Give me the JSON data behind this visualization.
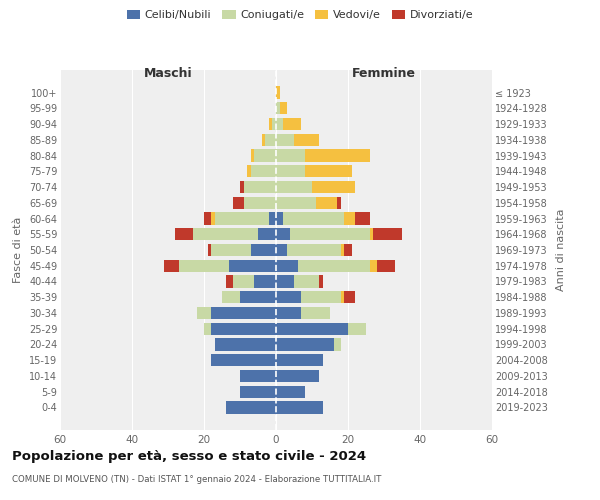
{
  "age_groups": [
    "100+",
    "95-99",
    "90-94",
    "85-89",
    "80-84",
    "75-79",
    "70-74",
    "65-69",
    "60-64",
    "55-59",
    "50-54",
    "45-49",
    "40-44",
    "35-39",
    "30-34",
    "25-29",
    "20-24",
    "15-19",
    "10-14",
    "5-9",
    "0-4"
  ],
  "birth_years": [
    "≤ 1923",
    "1924-1928",
    "1929-1933",
    "1934-1938",
    "1939-1943",
    "1944-1948",
    "1949-1953",
    "1954-1958",
    "1959-1963",
    "1964-1968",
    "1969-1973",
    "1974-1978",
    "1979-1983",
    "1984-1988",
    "1989-1993",
    "1994-1998",
    "1999-2003",
    "2004-2008",
    "2009-2013",
    "2014-2018",
    "2019-2023"
  ],
  "maschi": {
    "celibi": [
      0,
      0,
      0,
      0,
      0,
      0,
      0,
      0,
      2,
      5,
      7,
      13,
      6,
      10,
      18,
      18,
      17,
      18,
      10,
      10,
      14
    ],
    "coniugati": [
      0,
      0,
      1,
      3,
      6,
      7,
      9,
      9,
      15,
      18,
      11,
      14,
      6,
      5,
      4,
      2,
      0,
      0,
      0,
      0,
      0
    ],
    "vedovi": [
      0,
      0,
      1,
      1,
      1,
      1,
      0,
      0,
      1,
      0,
      0,
      0,
      0,
      0,
      0,
      0,
      0,
      0,
      0,
      0,
      0
    ],
    "divorziati": [
      0,
      0,
      0,
      0,
      0,
      0,
      1,
      3,
      2,
      5,
      1,
      4,
      2,
      0,
      0,
      0,
      0,
      0,
      0,
      0,
      0
    ]
  },
  "femmine": {
    "nubili": [
      0,
      0,
      0,
      0,
      0,
      0,
      0,
      0,
      2,
      4,
      3,
      6,
      5,
      7,
      7,
      20,
      16,
      13,
      12,
      8,
      13
    ],
    "coniugate": [
      0,
      1,
      2,
      5,
      8,
      8,
      10,
      11,
      17,
      22,
      15,
      20,
      7,
      11,
      8,
      5,
      2,
      0,
      0,
      0,
      0
    ],
    "vedove": [
      1,
      2,
      5,
      7,
      18,
      13,
      12,
      6,
      3,
      1,
      1,
      2,
      0,
      1,
      0,
      0,
      0,
      0,
      0,
      0,
      0
    ],
    "divorziate": [
      0,
      0,
      0,
      0,
      0,
      0,
      0,
      1,
      4,
      8,
      2,
      5,
      1,
      3,
      0,
      0,
      0,
      0,
      0,
      0,
      0
    ]
  },
  "colors": {
    "celibi": "#4d72aa",
    "coniugati": "#c8d9a5",
    "vedovi": "#f5c040",
    "divorziati": "#c0392b"
  },
  "title": "Popolazione per età, sesso e stato civile - 2024",
  "subtitle": "COMUNE DI MOLVENO (TN) - Dati ISTAT 1° gennaio 2024 - Elaborazione TUTTITALIA.IT",
  "ylabel_left": "Fasce di età",
  "ylabel_right": "Anni di nascita",
  "xlabel_left": "Maschi",
  "xlabel_right": "Femmine",
  "legend_labels": [
    "Celibi/Nubili",
    "Coniugati/e",
    "Vedovi/e",
    "Divorziati/e"
  ],
  "xlim": 60,
  "background_color": "#ffffff",
  "plot_bg": "#efefef",
  "grid_color": "#ffffff"
}
